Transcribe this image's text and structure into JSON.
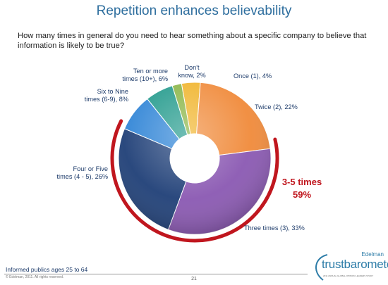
{
  "title": "Repetition enhances believability",
  "subtitle": "How many times in general do you need to hear something about a specific company to believe that information is likely to be true?",
  "footer_note": "Informed publics ages 25 to 64",
  "copyright": "© Edelman, 2011. All rights reserved.",
  "page_number": "21",
  "logo": {
    "brand": "Edelman",
    "wordmark": "trustbarometer",
    "tagline": "2011 ANNUAL GLOBAL OPINION LEADERS STUDY"
  },
  "colors": {
    "title": "#2e6e9e",
    "highlight": "#c0161e"
  },
  "chart_data": {
    "type": "pie",
    "donut": true,
    "slices": [
      {
        "label": "Once (1), 4%",
        "value": 4,
        "color": "#f0b42c"
      },
      {
        "label": "Twice (2), 22%",
        "value": 22,
        "color": "#f08a3a"
      },
      {
        "label": "Three times (3), 33%",
        "value": 33,
        "color": "#8a58b2"
      },
      {
        "label": "Four or Five times (4 - 5), 26%",
        "value": 26,
        "color": "#1f3f77"
      },
      {
        "label": "Six to Nine times (6-9), 8%",
        "value": 8,
        "color": "#2f84d6"
      },
      {
        "label": "Ten or more times (10+), 6%",
        "value": 6,
        "color": "#239a8c"
      },
      {
        "label": "Don't know, 2%",
        "value": 2,
        "color": "#8ab547"
      }
    ],
    "highlight": {
      "line1": "3-5 times",
      "line2": "59%",
      "color": "#c0161e"
    }
  }
}
